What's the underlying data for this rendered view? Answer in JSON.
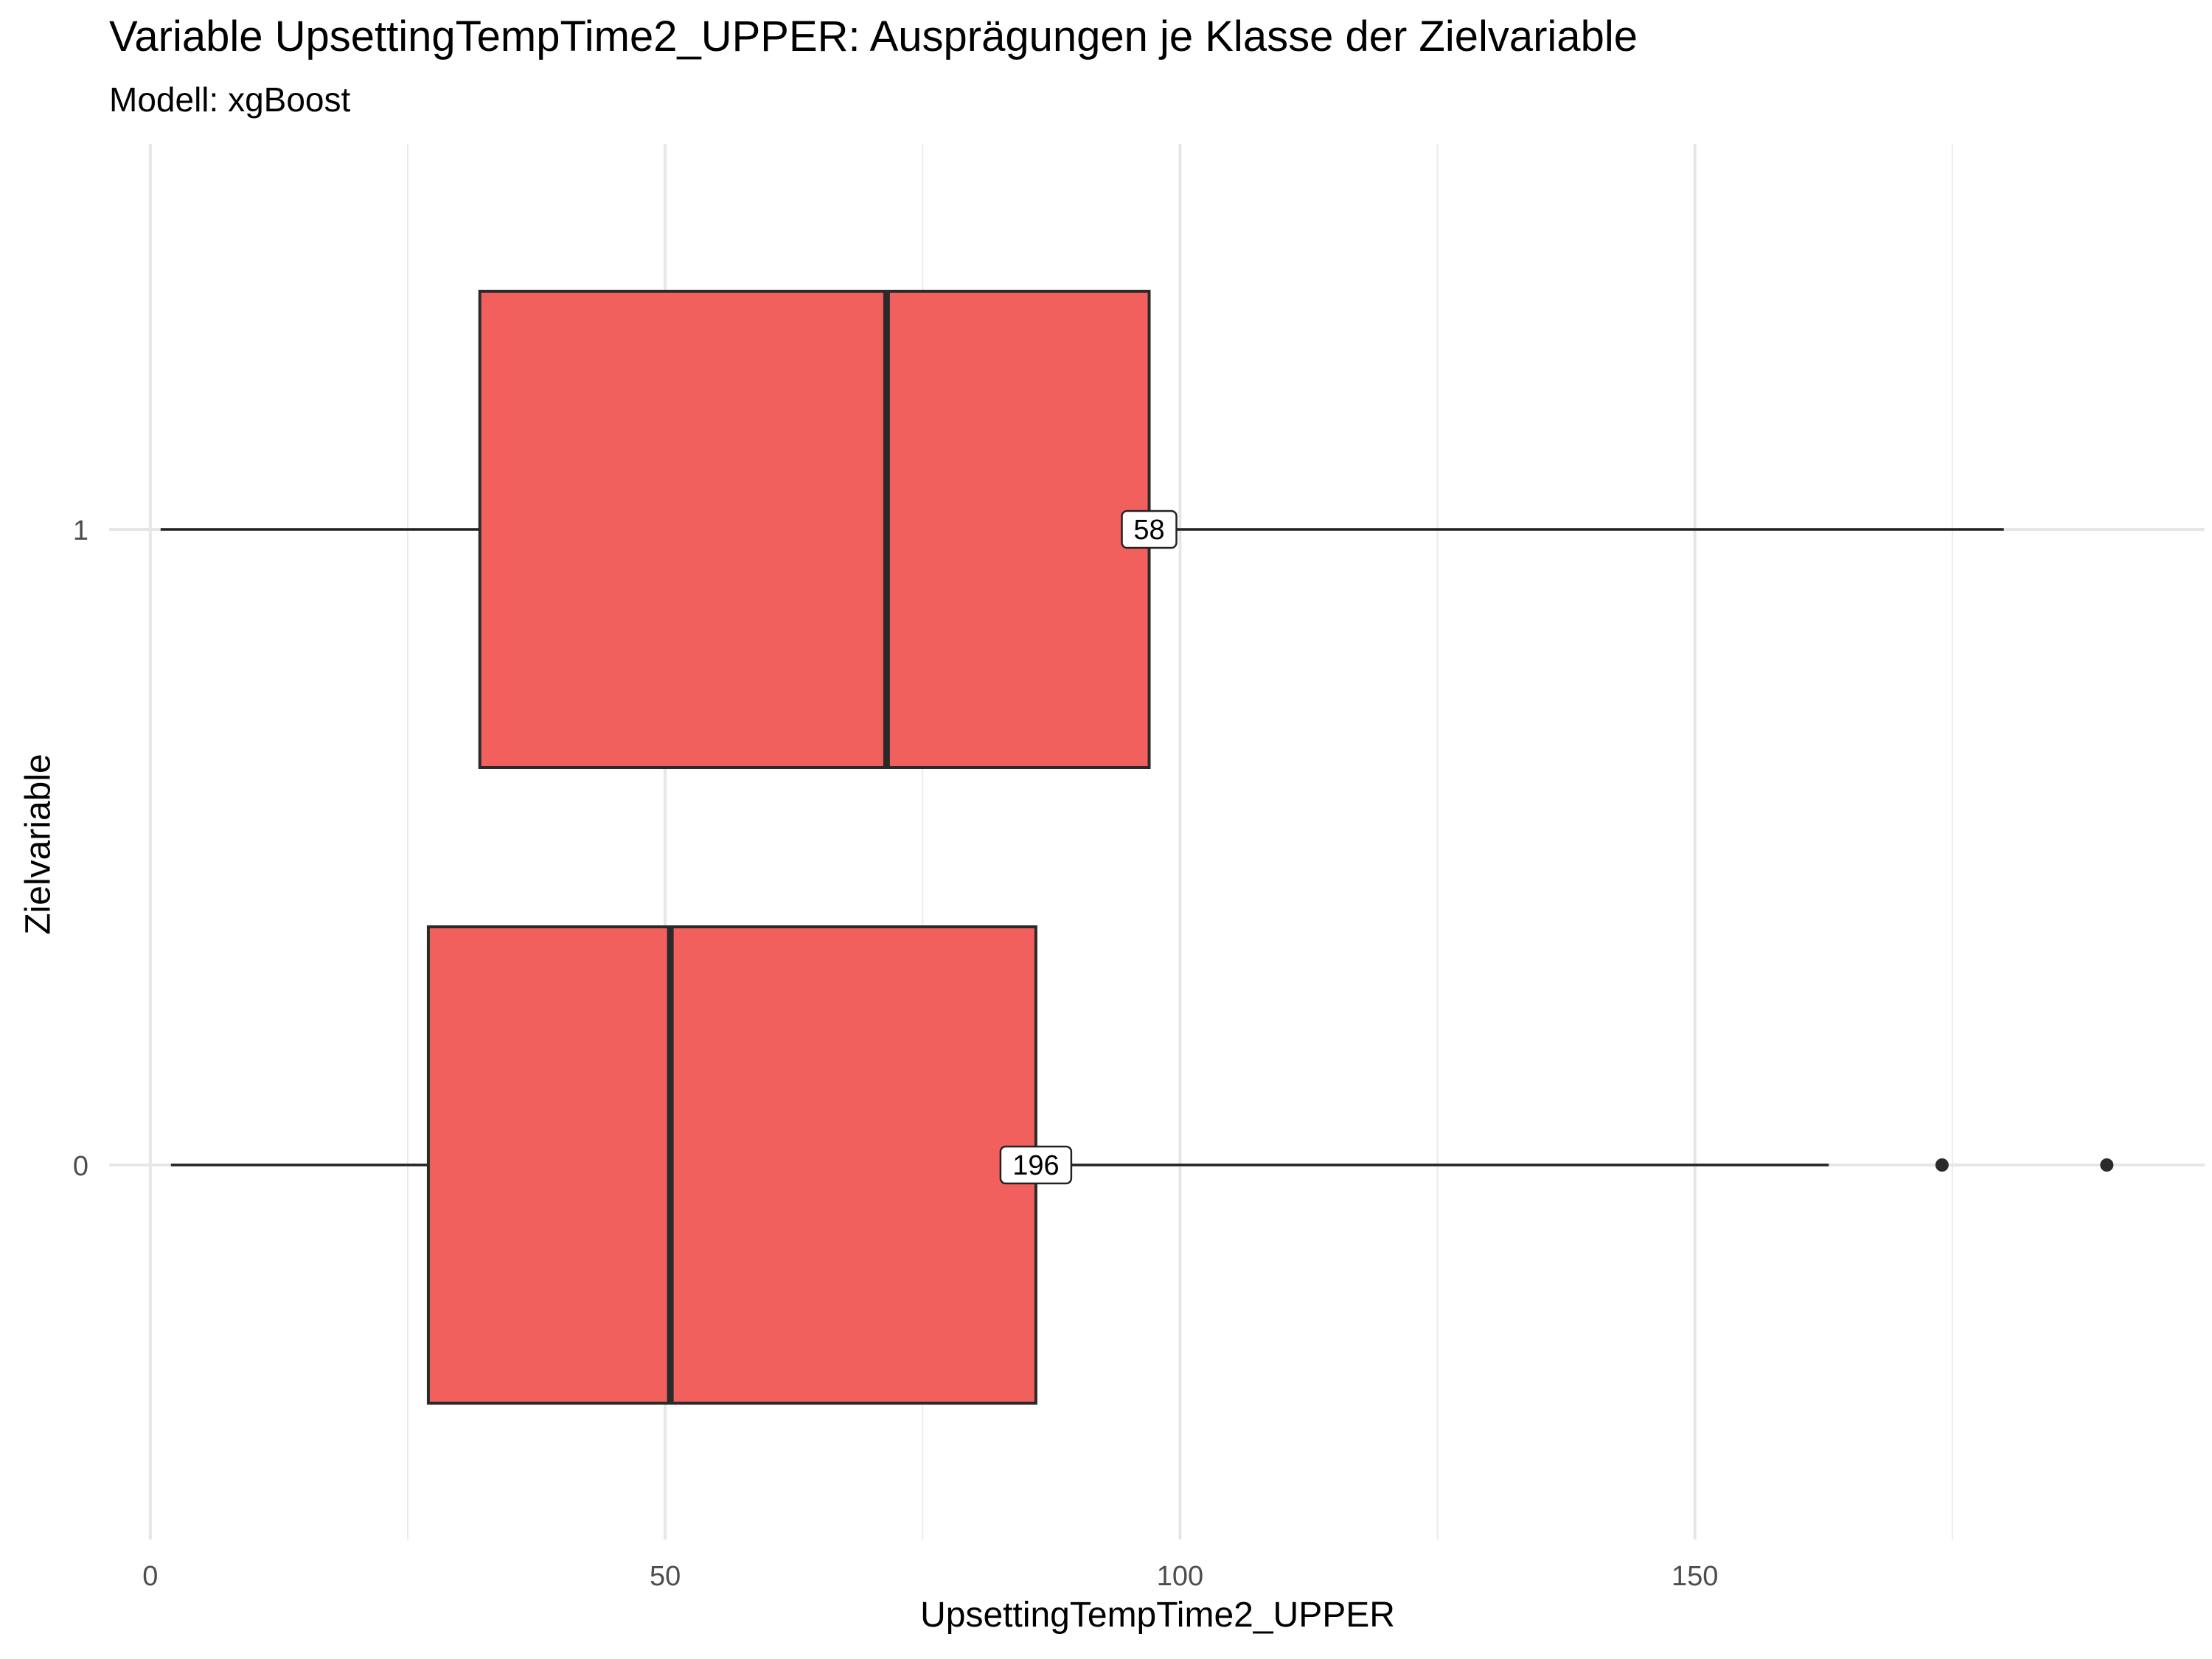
{
  "chart_data": {
    "type": "boxplot",
    "title": "Variable UpsettingTempTime2_UPPER: Ausprägungen je Klasse der Zielvariable",
    "subtitle": "Modell: xgBoost",
    "xlabel": "UpsettingTempTime2_UPPER",
    "ylabel": "Zielvariable",
    "xlim": [
      -4,
      199.5
    ],
    "x_ticks": [
      0,
      50,
      100,
      150
    ],
    "orientation": "horizontal",
    "grid": true,
    "fill_color": "#F2605D",
    "categories": [
      "0",
      "1"
    ],
    "boxes": [
      {
        "category": "0",
        "min": 2,
        "q1": 27,
        "median": 50.5,
        "q3": 86,
        "max": 163,
        "outliers": [
          174,
          190
        ],
        "count_label": "196"
      },
      {
        "category": "1",
        "min": 1,
        "q1": 32,
        "median": 71.5,
        "q3": 97,
        "max": 180,
        "outliers": [],
        "count_label": "58"
      }
    ]
  }
}
